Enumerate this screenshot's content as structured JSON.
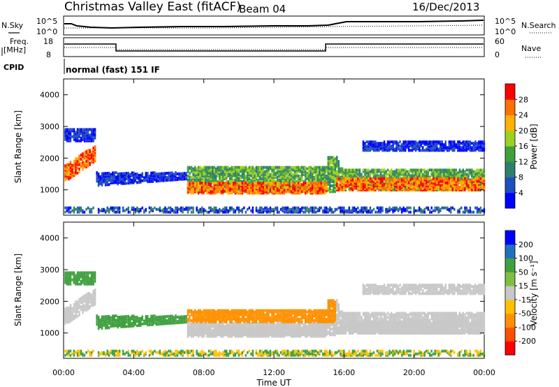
{
  "header": {
    "title": "Christmas Valley East (fitACF)",
    "beam": "Beam 04",
    "date": "16/Dec/2013"
  },
  "sky_panel": {
    "left_label": "N.Sky",
    "right_label": "N.Search",
    "ticks_left": [
      "10^5",
      "10^0"
    ],
    "ticks_right": [
      "10^5",
      "10^0"
    ]
  },
  "freq_panel": {
    "label_line1": "Freq.",
    "label_line2": "[MHz]",
    "right_label": "Nave",
    "ticks_left": [
      "18",
      "8"
    ],
    "ticks_right": [
      "60",
      "0"
    ]
  },
  "cpid": {
    "label": "CPID",
    "value": "normal (fast) 151 IF"
  },
  "colors": {
    "power": [
      "#0000ff",
      "#1f4fbf",
      "#2f7f6f",
      "#3f9f3f",
      "#9fd020",
      "#ffb000",
      "#ff7000",
      "#ff0000"
    ],
    "velocity": [
      "#ff0000",
      "#ff5000",
      "#ff9000",
      "#ffc000",
      "#c8c8c8",
      "#80c040",
      "#40a040",
      "#2070c0",
      "#0000ff"
    ]
  },
  "chart_data": [
    {
      "type": "heatmap",
      "name": "power",
      "ylabel": "Slant Range [km]",
      "yticks": [
        "1000",
        "2000",
        "3000",
        "4000"
      ],
      "ylim": [
        200,
        4500
      ],
      "xlim": [
        0,
        24
      ],
      "colorbar_label": "Power [dB]",
      "colorbar_ticks": [
        "4",
        "8",
        "12",
        "16",
        "20",
        "24",
        "28"
      ],
      "colorbar_range": [
        0,
        32
      ]
    },
    {
      "type": "heatmap",
      "name": "velocity",
      "ylabel": "Slant Range [km]",
      "yticks": [
        "1000",
        "2000",
        "3000",
        "4000"
      ],
      "ylim": [
        200,
        4500
      ],
      "xlim": [
        0,
        24
      ],
      "colorbar_label": "Velocity [m s⁻¹]",
      "colorbar_ticks": [
        "200",
        "100",
        "50",
        "15",
        "-15",
        "-50",
        "-100",
        "-200"
      ],
      "xlabel": "Time UT",
      "xticks": [
        "00:00",
        "04:00",
        "08:00",
        "12:00",
        "16:00",
        "20:00",
        "00:00"
      ]
    }
  ]
}
